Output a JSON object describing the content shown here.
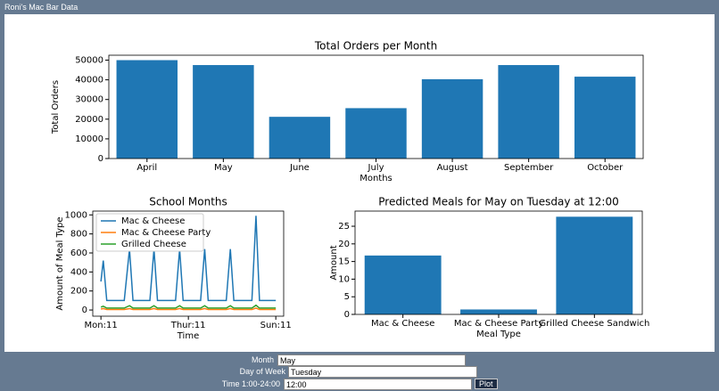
{
  "window_title": "Roni's Mac Bar Data",
  "chart_data": [
    {
      "type": "bar",
      "title": "Total Orders per Month",
      "x_label": "Months",
      "y_label": "Total Orders",
      "categories": [
        "April",
        "May",
        "June",
        "July",
        "August",
        "September",
        "October"
      ],
      "values": [
        50000,
        47500,
        21200,
        25600,
        40300,
        47500,
        41600
      ],
      "color": "#1f77b4",
      "ylim": [
        0,
        52500
      ],
      "yticks": [
        0,
        10000,
        20000,
        30000,
        40000,
        50000
      ]
    },
    {
      "type": "line",
      "title": "School Months",
      "x_label": "Time",
      "y_label": "Amount of Meal Type",
      "x": [
        0,
        0.08,
        0.2,
        0.8,
        0.98,
        1.1,
        1.68,
        1.82,
        1.94,
        2.56,
        2.7,
        2.82,
        3.42,
        3.56,
        3.68,
        4.3,
        4.44,
        4.56,
        5.18,
        5.32,
        5.44,
        6.0
      ],
      "series": [
        {
          "name": "Mac & Cheese",
          "color": "#1f77b4",
          "values": [
            300,
            520,
            100,
            100,
            640,
            100,
            100,
            640,
            100,
            100,
            640,
            100,
            100,
            640,
            100,
            100,
            640,
            100,
            100,
            990,
            100,
            100
          ]
        },
        {
          "name": "Mac & Cheese Party",
          "color": "#ff7f0e",
          "values": [
            10,
            15,
            5,
            5,
            15,
            5,
            5,
            15,
            5,
            5,
            15,
            5,
            5,
            15,
            5,
            5,
            15,
            5,
            5,
            20,
            5,
            5
          ]
        },
        {
          "name": "Grilled Cheese",
          "color": "#2ca02c",
          "values": [
            30,
            40,
            20,
            20,
            45,
            20,
            20,
            45,
            20,
            20,
            45,
            20,
            20,
            45,
            20,
            20,
            45,
            20,
            20,
            50,
            20,
            20
          ]
        }
      ],
      "xlim": [
        -0.28,
        6.27
      ],
      "xticks": [
        {
          "value": 0,
          "label": "Mon:11"
        },
        {
          "value": 3,
          "label": "Thur:11"
        },
        {
          "value": 6,
          "label": "Sun:11"
        }
      ],
      "ylim": [
        -65,
        1040
      ],
      "yticks": [
        0,
        200,
        400,
        600,
        800,
        1000
      ],
      "legend": "upper-left"
    },
    {
      "type": "bar",
      "title": "Predicted Meals for May on Tuesday at 12:00",
      "x_label": "Meal Type",
      "y_label": "Amount",
      "categories": [
        "Mac & Cheese",
        "Mac & Cheese Party",
        "Grilled Cheese Sandwich"
      ],
      "values": [
        16.7,
        1.4,
        27.7
      ],
      "color": "#1f77b4",
      "ylim": [
        0,
        29.3
      ],
      "yticks": [
        0,
        5,
        10,
        15,
        20,
        25
      ]
    }
  ],
  "form": {
    "month_label": "Month",
    "month": "May",
    "day_label": "Day of Week",
    "day": "Tuesday",
    "time_label": "Time 1:00-24:00",
    "time": "12:00",
    "button": "Plot"
  }
}
